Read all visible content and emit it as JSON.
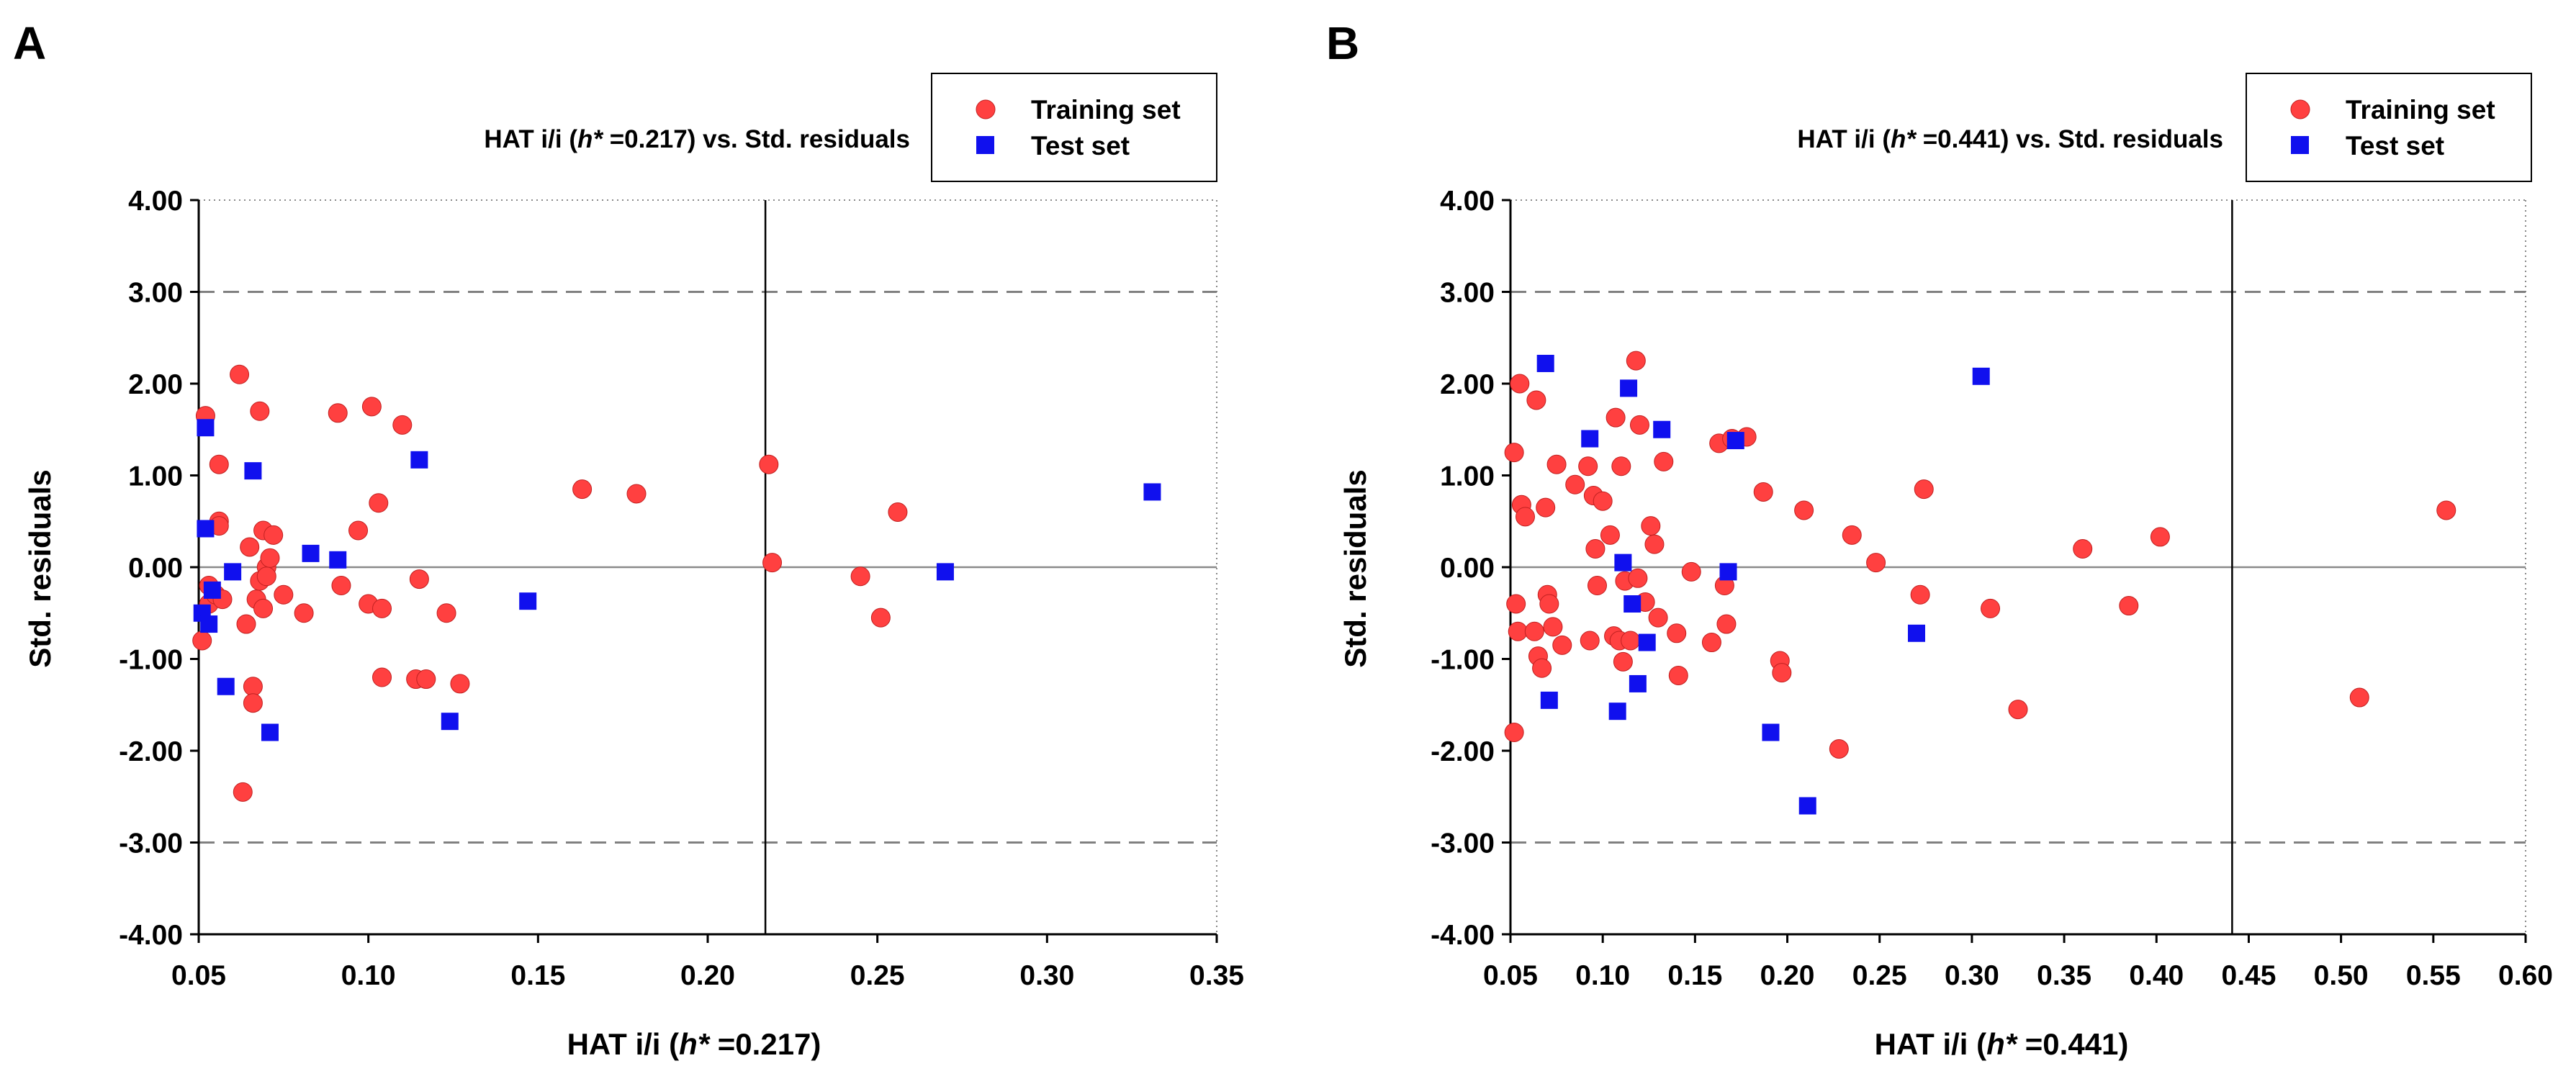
{
  "colors": {
    "training": "#ff4040",
    "test": "#1010ee",
    "axis": "#000000",
    "dash": "#808080"
  },
  "chart_data": [
    {
      "panel": "A",
      "type": "scatter",
      "title_prefix": "HAT i/i (",
      "title_italic": "h*",
      "title_suffix": " =0.217) vs. Std. residuals",
      "xlabel_prefix": "HAT i/i (",
      "xlabel_italic": "h*",
      "xlabel_suffix": " =0.217)",
      "ylabel": "Std. residuals",
      "xlim": [
        0.05,
        0.35
      ],
      "ylim": [
        -4.0,
        4.0
      ],
      "xticks": [
        0.05,
        0.1,
        0.15,
        0.2,
        0.25,
        0.3,
        0.35
      ],
      "xtick_labels": [
        "0.05",
        "0.10",
        "0.15",
        "0.20",
        "0.25",
        "0.30",
        "0.35"
      ],
      "yticks": [
        4,
        3,
        2,
        1,
        0,
        -1,
        -2,
        -3,
        -4
      ],
      "ytick_labels": [
        "4.00",
        "3.00",
        "2.00",
        "1.00",
        "0.00",
        "-1.00",
        "-2.00",
        "-3.00",
        "-4.00"
      ],
      "h_star": 0.217,
      "limit_lines": [
        3,
        -3
      ],
      "legend": [
        "Training set",
        "Test set"
      ],
      "series": [
        {
          "name": "Training set",
          "x": [
            0.051,
            0.052,
            0.053,
            0.053,
            0.055,
            0.056,
            0.056,
            0.056,
            0.057,
            0.062,
            0.063,
            0.064,
            0.065,
            0.066,
            0.066,
            0.067,
            0.068,
            0.068,
            0.069,
            0.069,
            0.07,
            0.07,
            0.071,
            0.072,
            0.075,
            0.081,
            0.091,
            0.092,
            0.097,
            0.1,
            0.101,
            0.103,
            0.104,
            0.104,
            0.11,
            0.114,
            0.115,
            0.117,
            0.123,
            0.127,
            0.163,
            0.179,
            0.218,
            0.219,
            0.245,
            0.251,
            0.256
          ],
          "y": [
            -0.8,
            1.65,
            -0.2,
            -0.4,
            -0.3,
            0.5,
            1.12,
            0.45,
            -0.35,
            2.1,
            -2.45,
            -0.62,
            0.22,
            -1.3,
            -1.48,
            -0.35,
            1.7,
            -0.15,
            0.4,
            -0.45,
            0.0,
            -0.1,
            0.1,
            0.35,
            -0.3,
            -0.5,
            1.68,
            -0.2,
            0.4,
            -0.4,
            1.75,
            0.7,
            -0.45,
            -1.2,
            1.55,
            -1.22,
            -0.13,
            -1.22,
            -0.5,
            -1.27,
            0.85,
            0.8,
            1.12,
            0.05,
            -0.1,
            -0.55,
            0.6
          ]
        },
        {
          "name": "Test set",
          "x": [
            0.051,
            0.052,
            0.052,
            0.053,
            0.054,
            0.058,
            0.06,
            0.066,
            0.071,
            0.083,
            0.091,
            0.115,
            0.124,
            0.147,
            0.27,
            0.331
          ],
          "y": [
            -0.5,
            1.52,
            0.42,
            -0.62,
            -0.25,
            -1.3,
            -0.05,
            1.05,
            -1.8,
            0.15,
            0.08,
            1.17,
            -1.68,
            -0.37,
            -0.05,
            0.82
          ]
        }
      ]
    },
    {
      "panel": "B",
      "type": "scatter",
      "title_prefix": "HAT i/i (",
      "title_italic": "h*",
      "title_suffix": " =0.441) vs. Std. residuals",
      "xlabel_prefix": "HAT i/i (",
      "xlabel_italic": "h*",
      "xlabel_suffix": " =0.441)",
      "ylabel": "Std. residuals",
      "xlim": [
        0.05,
        0.6
      ],
      "ylim": [
        -4.0,
        4.0
      ],
      "xticks": [
        0.05,
        0.1,
        0.15,
        0.2,
        0.25,
        0.3,
        0.35,
        0.4,
        0.45,
        0.5,
        0.55,
        0.6
      ],
      "xtick_labels": [
        "0.05",
        "0.10",
        "0.15",
        "0.20",
        "0.25",
        "0.30",
        "0.35",
        "0.40",
        "0.45",
        "0.50",
        "0.55",
        "0.60"
      ],
      "yticks": [
        4,
        3,
        2,
        1,
        0,
        -1,
        -2,
        -3,
        -4
      ],
      "ytick_labels": [
        "4.00",
        "3.00",
        "2.00",
        "1.00",
        "0.00",
        "-1.00",
        "-2.00",
        "-3.00",
        "-4.00"
      ],
      "h_star": 0.441,
      "limit_lines": [
        3,
        -3
      ],
      "legend": [
        "Training set",
        "Test set"
      ],
      "series": [
        {
          "name": "Training set",
          "x": [
            0.052,
            0.052,
            0.053,
            0.054,
            0.055,
            0.056,
            0.058,
            0.063,
            0.064,
            0.065,
            0.067,
            0.069,
            0.07,
            0.071,
            0.073,
            0.075,
            0.078,
            0.085,
            0.092,
            0.093,
            0.095,
            0.096,
            0.097,
            0.1,
            0.104,
            0.106,
            0.107,
            0.109,
            0.11,
            0.111,
            0.112,
            0.115,
            0.118,
            0.119,
            0.12,
            0.123,
            0.126,
            0.128,
            0.13,
            0.133,
            0.14,
            0.141,
            0.148,
            0.159,
            0.163,
            0.166,
            0.167,
            0.17,
            0.178,
            0.187,
            0.196,
            0.197,
            0.209,
            0.228,
            0.235,
            0.248,
            0.272,
            0.274,
            0.31,
            0.325,
            0.36,
            0.385,
            0.402,
            0.51,
            0.557
          ],
          "y": [
            -1.8,
            1.25,
            -0.4,
            -0.7,
            2.0,
            0.68,
            0.55,
            -0.7,
            1.82,
            -0.97,
            -1.1,
            0.65,
            -0.3,
            -0.4,
            -0.65,
            1.12,
            -0.85,
            0.9,
            1.1,
            -0.8,
            0.78,
            0.2,
            -0.2,
            0.72,
            0.35,
            -0.75,
            1.63,
            -0.8,
            1.1,
            -1.03,
            -0.15,
            -0.8,
            2.25,
            -0.12,
            1.55,
            -0.38,
            0.45,
            0.25,
            -0.55,
            1.15,
            -0.72,
            -1.18,
            -0.05,
            -0.82,
            1.35,
            -0.2,
            -0.62,
            1.4,
            1.42,
            0.82,
            -1.02,
            -1.15,
            0.62,
            -1.98,
            0.35,
            0.05,
            -0.3,
            0.85,
            -0.45,
            -1.55,
            0.2,
            -0.42,
            0.33,
            -1.42,
            0.62
          ]
        },
        {
          "name": "Test set",
          "x": [
            0.069,
            0.071,
            0.093,
            0.108,
            0.111,
            0.114,
            0.116,
            0.119,
            0.124,
            0.132,
            0.168,
            0.172,
            0.191,
            0.211,
            0.27,
            0.305
          ],
          "y": [
            2.22,
            -1.45,
            1.4,
            -1.57,
            0.05,
            1.95,
            -0.4,
            -1.27,
            -0.82,
            1.5,
            -0.05,
            1.38,
            -1.8,
            -2.6,
            -0.72,
            2.08
          ]
        }
      ]
    }
  ]
}
